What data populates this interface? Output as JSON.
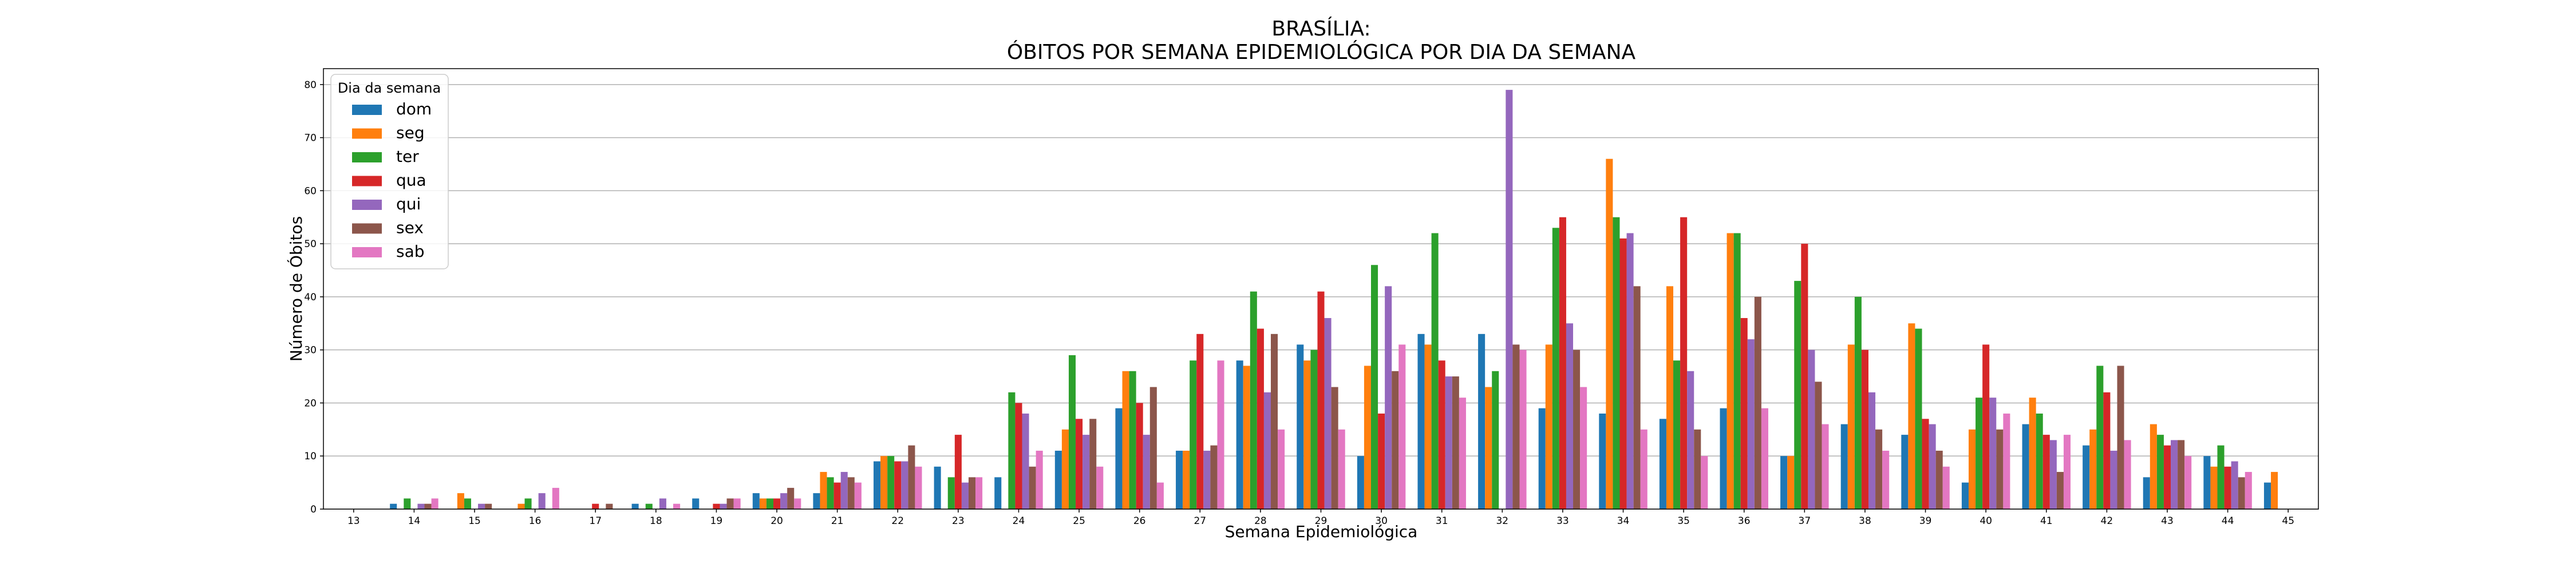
{
  "chart_data": {
    "type": "bar",
    "title_line1": "BRASÍLIA:",
    "title_line2": "ÓBITOS POR SEMANA EPIDEMIOLÓGICA POR DIA DA SEMANA",
    "xlabel": "Semana Epidemiológica",
    "ylabel": "Número de Óbitos",
    "ylim": [
      0,
      83
    ],
    "yticks": [
      0,
      10,
      20,
      30,
      40,
      50,
      60,
      70,
      80
    ],
    "grid": "horizontal",
    "legend_title": "Dia da semana",
    "legend_position": "top-left",
    "categories": [
      "13",
      "14",
      "15",
      "16",
      "17",
      "18",
      "19",
      "20",
      "21",
      "22",
      "23",
      "24",
      "25",
      "26",
      "27",
      "28",
      "29",
      "30",
      "31",
      "32",
      "33",
      "34",
      "35",
      "36",
      "37",
      "38",
      "39",
      "40",
      "41",
      "42",
      "43",
      "44",
      "45"
    ],
    "series": [
      {
        "name": "dom",
        "color": "#1f77b4",
        "values": [
          0,
          1,
          0,
          0,
          0,
          1,
          2,
          3,
          3,
          9,
          8,
          6,
          11,
          19,
          11,
          28,
          31,
          10,
          33,
          33,
          19,
          18,
          17,
          19,
          10,
          16,
          14,
          5,
          16,
          12,
          6,
          10,
          5
        ]
      },
      {
        "name": "seg",
        "color": "#ff7f0e",
        "values": [
          0,
          0,
          3,
          1,
          0,
          0,
          0,
          2,
          7,
          10,
          0,
          0,
          15,
          26,
          11,
          27,
          28,
          27,
          31,
          23,
          31,
          66,
          42,
          52,
          10,
          31,
          35,
          15,
          21,
          15,
          16,
          8,
          7
        ]
      },
      {
        "name": "ter",
        "color": "#2ca02c",
        "values": [
          0,
          2,
          2,
          2,
          0,
          1,
          0,
          2,
          6,
          10,
          6,
          22,
          29,
          26,
          28,
          41,
          30,
          46,
          52,
          26,
          53,
          55,
          28,
          52,
          43,
          40,
          34,
          21,
          18,
          27,
          14,
          12,
          0
        ]
      },
      {
        "name": "qua",
        "color": "#d62728",
        "values": [
          0,
          0,
          0,
          0,
          1,
          0,
          1,
          2,
          5,
          9,
          14,
          20,
          17,
          20,
          33,
          34,
          41,
          18,
          28,
          0,
          55,
          51,
          55,
          36,
          50,
          30,
          17,
          31,
          14,
          22,
          12,
          8,
          0
        ]
      },
      {
        "name": "qui",
        "color": "#9467bd",
        "values": [
          0,
          1,
          1,
          3,
          0,
          2,
          1,
          3,
          7,
          9,
          5,
          18,
          14,
          14,
          11,
          22,
          36,
          42,
          25,
          79,
          35,
          52,
          26,
          32,
          30,
          22,
          16,
          21,
          13,
          11,
          13,
          9,
          0
        ]
      },
      {
        "name": "sex",
        "color": "#8c564b",
        "values": [
          0,
          1,
          1,
          0,
          1,
          0,
          2,
          4,
          6,
          12,
          6,
          8,
          17,
          23,
          12,
          33,
          23,
          26,
          25,
          31,
          30,
          42,
          15,
          40,
          24,
          15,
          11,
          15,
          7,
          27,
          13,
          6,
          0
        ]
      },
      {
        "name": "sab",
        "color": "#e377c2",
        "values": [
          0,
          2,
          0,
          4,
          0,
          1,
          2,
          2,
          5,
          8,
          6,
          11,
          8,
          5,
          28,
          15,
          15,
          31,
          21,
          30,
          23,
          15,
          10,
          19,
          16,
          11,
          8,
          18,
          14,
          13,
          10,
          7,
          0
        ]
      }
    ]
  }
}
